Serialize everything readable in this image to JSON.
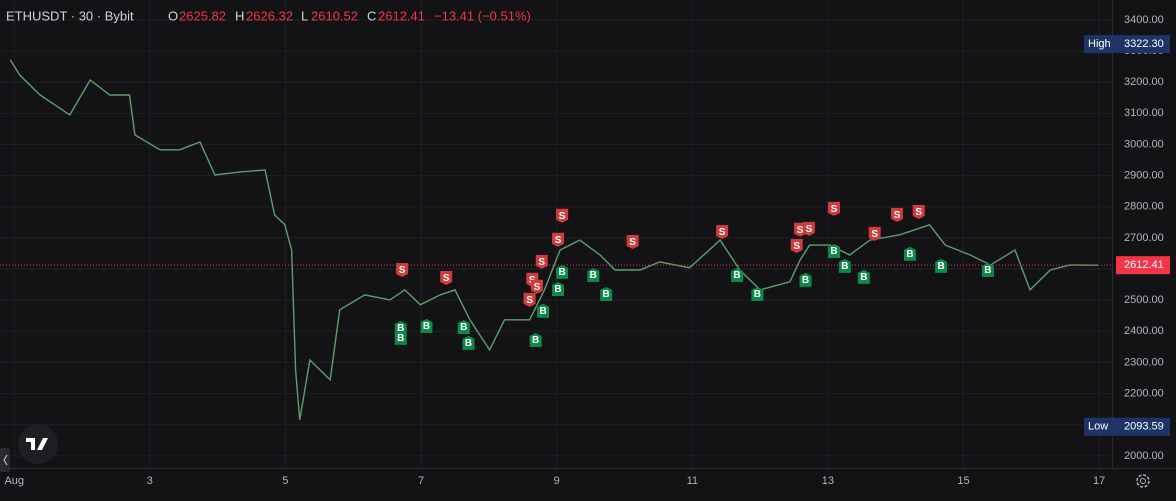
{
  "header": {
    "symbol": "ETHUSDT · 30 · Bybit",
    "open_label": "O",
    "open": "2625.82",
    "high_label": "H",
    "high": "2626.32",
    "low_label": "L",
    "low": "2610.52",
    "close_label": "C",
    "close": "2612.41",
    "change": "−13.41 (−0.51%)"
  },
  "chart_data": {
    "type": "line",
    "color": "#5d9e6e",
    "x": [
      0.94,
      1.08,
      1.38,
      1.82,
      2.12,
      2.41,
      2.7,
      2.78,
      3.15,
      3.44,
      3.74,
      3.96,
      4.33,
      4.7,
      4.84,
      4.99,
      5.09,
      5.15,
      5.21,
      5.36,
      5.66,
      5.8,
      6.17,
      6.54,
      6.76,
      6.99,
      7.28,
      7.5,
      7.72,
      8.01,
      8.23,
      8.6,
      8.82,
      9.05,
      9.34,
      9.64,
      9.86,
      10.23,
      10.52,
      10.96,
      11.41,
      11.7,
      12.0,
      12.44,
      12.59,
      12.73,
      13.03,
      13.32,
      13.62,
      14.06,
      14.5,
      14.73,
      15.1,
      15.4,
      15.76,
      15.98,
      16.28,
      16.57,
      16.98
    ],
    "values": [
      3272,
      3223,
      3159,
      3095,
      3207,
      3159,
      3159,
      3031,
      2983,
      2983,
      3008,
      2902,
      2912,
      2918,
      2774,
      2742,
      2661,
      2276,
      2115,
      2308,
      2244,
      2469,
      2517,
      2501,
      2533,
      2485,
      2517,
      2533,
      2437,
      2340,
      2437,
      2437,
      2533,
      2661,
      2693,
      2645,
      2597,
      2597,
      2623,
      2604,
      2693,
      2597,
      2533,
      2559,
      2629,
      2677,
      2677,
      2645,
      2693,
      2710,
      2742,
      2677,
      2645,
      2613,
      2661,
      2533,
      2597,
      2613,
      2612.41
    ],
    "xlim": [
      0.79,
      17.19
    ],
    "xticks": [
      {
        "value": 1,
        "label": "Aug"
      },
      3,
      5,
      7,
      9,
      11,
      13,
      15,
      17
    ],
    "ylim": [
      1961,
      3464
    ],
    "yticks": [
      {
        "value": 2000,
        "label": "2000.00"
      },
      {
        "value": 2100,
        "label": "2100.00"
      },
      {
        "value": 2200,
        "label": "2200.00"
      },
      {
        "value": 2300,
        "label": "2300.00"
      },
      {
        "value": 2400,
        "label": "2400.00"
      },
      {
        "value": 2500,
        "label": "2500.00"
      },
      {
        "value": 2600,
        "label": "2600.00"
      },
      {
        "value": 2700,
        "label": "2700.00"
      },
      {
        "value": 2800,
        "label": "2800.00"
      },
      {
        "value": 2900,
        "label": "2900.00"
      },
      {
        "value": 3000,
        "label": "3000.00"
      },
      {
        "value": 3100,
        "label": "3100.00"
      },
      {
        "value": 3200,
        "label": "3200.00"
      },
      {
        "value": 3300,
        "label": "3300.00"
      },
      {
        "value": 3400,
        "label": "3400.00"
      }
    ],
    "grid": true,
    "high_tag": {
      "label": "High",
      "value": 3322.3,
      "value_label": "3322.30"
    },
    "low_tag": {
      "label": "Low",
      "value": 2093.59,
      "value_label": "2093.59"
    },
    "last_price": 2612.41,
    "markers": [
      {
        "label": "S",
        "x": 6.72,
        "y": 2597
      },
      {
        "label": "S",
        "x": 7.37,
        "y": 2571
      },
      {
        "label": "S",
        "x": 8.64,
        "y": 2565
      },
      {
        "label": "S",
        "x": 8.71,
        "y": 2543
      },
      {
        "label": "S",
        "x": 8.78,
        "y": 2623
      },
      {
        "label": "S",
        "x": 8.6,
        "y": 2501
      },
      {
        "label": "S",
        "x": 9.02,
        "y": 2694
      },
      {
        "label": "S",
        "x": 9.08,
        "y": 2771
      },
      {
        "label": "S",
        "x": 10.12,
        "y": 2687
      },
      {
        "label": "S",
        "x": 11.44,
        "y": 2719
      },
      {
        "label": "S",
        "x": 12.54,
        "y": 2674
      },
      {
        "label": "S",
        "x": 12.59,
        "y": 2726
      },
      {
        "label": "S",
        "x": 12.72,
        "y": 2729
      },
      {
        "label": "S",
        "x": 13.09,
        "y": 2793
      },
      {
        "label": "S",
        "x": 13.69,
        "y": 2713
      },
      {
        "label": "S",
        "x": 14.02,
        "y": 2774
      },
      {
        "label": "S",
        "x": 14.34,
        "y": 2783
      },
      {
        "label": "B",
        "x": 6.7,
        "y": 2411
      },
      {
        "label": "B",
        "x": 6.7,
        "y": 2379
      },
      {
        "label": "B",
        "x": 7.08,
        "y": 2417
      },
      {
        "label": "B",
        "x": 7.63,
        "y": 2414
      },
      {
        "label": "B",
        "x": 7.7,
        "y": 2363
      },
      {
        "label": "B",
        "x": 8.69,
        "y": 2372
      },
      {
        "label": "B",
        "x": 8.8,
        "y": 2466
      },
      {
        "label": "B",
        "x": 9.02,
        "y": 2536
      },
      {
        "label": "B",
        "x": 9.08,
        "y": 2591
      },
      {
        "label": "B",
        "x": 9.54,
        "y": 2581
      },
      {
        "label": "B",
        "x": 9.73,
        "y": 2520
      },
      {
        "label": "B",
        "x": 11.66,
        "y": 2581
      },
      {
        "label": "B",
        "x": 11.96,
        "y": 2520
      },
      {
        "label": "B",
        "x": 12.67,
        "y": 2565
      },
      {
        "label": "B",
        "x": 13.09,
        "y": 2658
      },
      {
        "label": "B",
        "x": 13.25,
        "y": 2610
      },
      {
        "label": "B",
        "x": 13.53,
        "y": 2575
      },
      {
        "label": "B",
        "x": 14.21,
        "y": 2649
      },
      {
        "label": "B",
        "x": 14.67,
        "y": 2610
      },
      {
        "label": "B",
        "x": 15.36,
        "y": 2597
      }
    ]
  }
}
